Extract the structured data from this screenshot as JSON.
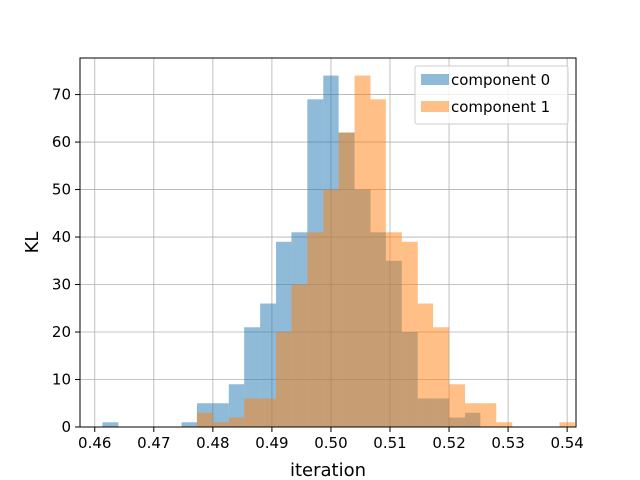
{
  "chart_data": {
    "type": "histogram",
    "title": "",
    "xlabel": "iteration",
    "ylabel": "KL",
    "xlim": [
      0.4575,
      0.5415
    ],
    "ylim": [
      0,
      77.7
    ],
    "x_ticks": [
      0.46,
      0.47,
      0.48,
      0.49,
      0.5,
      0.51,
      0.52,
      0.53,
      0.54
    ],
    "x_tick_labels": [
      "0.46",
      "0.47",
      "0.48",
      "0.49",
      "0.50",
      "0.51",
      "0.52",
      "0.53",
      "0.54"
    ],
    "y_ticks": [
      0,
      10,
      20,
      30,
      40,
      50,
      60,
      70
    ],
    "y_tick_labels": [
      "0",
      "10",
      "20",
      "30",
      "40",
      "50",
      "60",
      "70"
    ],
    "grid": true,
    "legend_position": "top-right",
    "series": [
      {
        "name": "component 0",
        "color": "#1f77b4",
        "alpha": 0.5,
        "bins": [
          {
            "x0": 0.4613,
            "x1": 0.464,
            "count": 1
          },
          {
            "x0": 0.464,
            "x1": 0.4666,
            "count": 0
          },
          {
            "x0": 0.4666,
            "x1": 0.4693,
            "count": 0
          },
          {
            "x0": 0.4693,
            "x1": 0.472,
            "count": 0
          },
          {
            "x0": 0.472,
            "x1": 0.4747,
            "count": 0
          },
          {
            "x0": 0.4747,
            "x1": 0.4773,
            "count": 1
          },
          {
            "x0": 0.4773,
            "x1": 0.48,
            "count": 5
          },
          {
            "x0": 0.48,
            "x1": 0.4827,
            "count": 5
          },
          {
            "x0": 0.4827,
            "x1": 0.4853,
            "count": 9
          },
          {
            "x0": 0.4853,
            "x1": 0.488,
            "count": 21
          },
          {
            "x0": 0.488,
            "x1": 0.4907,
            "count": 26
          },
          {
            "x0": 0.4907,
            "x1": 0.4933,
            "count": 39
          },
          {
            "x0": 0.4933,
            "x1": 0.496,
            "count": 41
          },
          {
            "x0": 0.496,
            "x1": 0.4987,
            "count": 69
          },
          {
            "x0": 0.4987,
            "x1": 0.5013,
            "count": 74
          },
          {
            "x0": 0.5013,
            "x1": 0.504,
            "count": 62
          },
          {
            "x0": 0.504,
            "x1": 0.5067,
            "count": 50
          },
          {
            "x0": 0.5067,
            "x1": 0.5093,
            "count": 41
          },
          {
            "x0": 0.5093,
            "x1": 0.512,
            "count": 35
          },
          {
            "x0": 0.512,
            "x1": 0.5147,
            "count": 20
          },
          {
            "x0": 0.5147,
            "x1": 0.5173,
            "count": 6
          },
          {
            "x0": 0.5173,
            "x1": 0.52,
            "count": 6
          },
          {
            "x0": 0.52,
            "x1": 0.5227,
            "count": 2
          },
          {
            "x0": 0.5227,
            "x1": 0.5253,
            "count": 3
          }
        ]
      },
      {
        "name": "component 1",
        "color": "#ff7f0e",
        "alpha": 0.5,
        "bins": [
          {
            "x0": 0.4773,
            "x1": 0.48,
            "count": 3
          },
          {
            "x0": 0.48,
            "x1": 0.4827,
            "count": 1
          },
          {
            "x0": 0.4827,
            "x1": 0.4853,
            "count": 2
          },
          {
            "x0": 0.4853,
            "x1": 0.488,
            "count": 6
          },
          {
            "x0": 0.488,
            "x1": 0.4907,
            "count": 6
          },
          {
            "x0": 0.4907,
            "x1": 0.4933,
            "count": 20
          },
          {
            "x0": 0.4933,
            "x1": 0.496,
            "count": 30
          },
          {
            "x0": 0.496,
            "x1": 0.4987,
            "count": 41
          },
          {
            "x0": 0.4987,
            "x1": 0.5013,
            "count": 50
          },
          {
            "x0": 0.5013,
            "x1": 0.504,
            "count": 62
          },
          {
            "x0": 0.504,
            "x1": 0.5067,
            "count": 74
          },
          {
            "x0": 0.5067,
            "x1": 0.5093,
            "count": 69
          },
          {
            "x0": 0.5093,
            "x1": 0.512,
            "count": 41
          },
          {
            "x0": 0.512,
            "x1": 0.5147,
            "count": 39
          },
          {
            "x0": 0.5147,
            "x1": 0.5173,
            "count": 26
          },
          {
            "x0": 0.5173,
            "x1": 0.52,
            "count": 21
          },
          {
            "x0": 0.52,
            "x1": 0.5227,
            "count": 9
          },
          {
            "x0": 0.5227,
            "x1": 0.5253,
            "count": 5
          },
          {
            "x0": 0.5253,
            "x1": 0.528,
            "count": 5
          },
          {
            "x0": 0.528,
            "x1": 0.5307,
            "count": 1
          },
          {
            "x0": 0.5307,
            "x1": 0.5333,
            "count": 0
          },
          {
            "x0": 0.5333,
            "x1": 0.536,
            "count": 0
          },
          {
            "x0": 0.536,
            "x1": 0.5387,
            "count": 0
          },
          {
            "x0": 0.5387,
            "x1": 0.5413,
            "count": 1
          }
        ]
      }
    ]
  }
}
